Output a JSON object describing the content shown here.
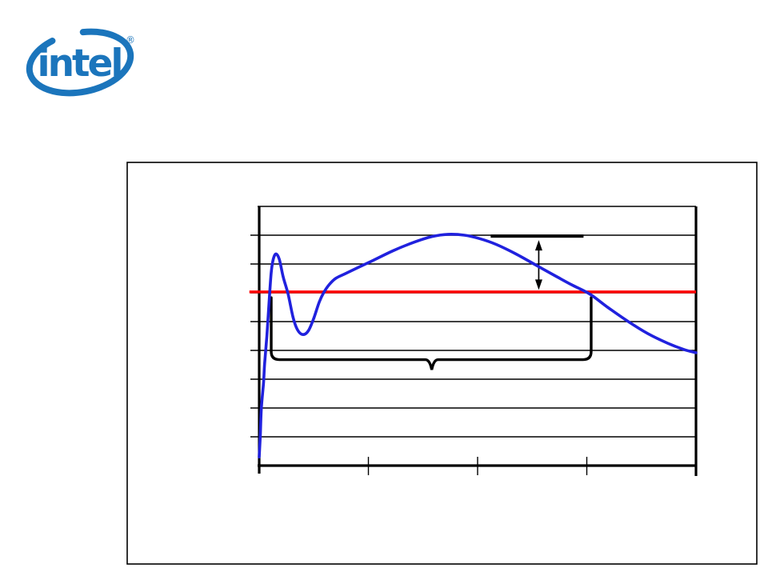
{
  "page": {
    "background": "#ffffff"
  },
  "logo": {
    "text": "intel",
    "registered_mark": "®",
    "color": "#1B75BC"
  },
  "figure": {
    "border_color": "#000000",
    "background": "#ffffff"
  },
  "chart_data": {
    "type": "line",
    "title": "",
    "xlabel": "",
    "ylabel": "",
    "xlim": [
      0,
      4
    ],
    "ylim": [
      0,
      9
    ],
    "x_ticks": [
      0,
      1,
      2,
      3,
      4
    ],
    "y_gridlines": [
      1,
      2,
      3,
      4,
      5,
      6,
      7,
      8,
      9
    ],
    "axis_labels_visible": false,
    "grid": "horizontal gridlines only; x tick marks unlabeled; left/bottom/right frame thick, top thin",
    "axis_color": "#000000",
    "series": [
      {
        "name": "signal-waveform",
        "color": "#2021DE",
        "stroke_width": 3.6,
        "points": [
          [
            0,
            0.3
          ],
          [
            0.01,
            1.05
          ],
          [
            0.02,
            2.0
          ],
          [
            0.04,
            2.9
          ],
          [
            0.05,
            3.55
          ],
          [
            0.07,
            4.5
          ],
          [
            0.09,
            5.65
          ],
          [
            0.11,
            6.7
          ],
          [
            0.13,
            7.18
          ],
          [
            0.155,
            7.35
          ],
          [
            0.185,
            7.15
          ],
          [
            0.22,
            6.55
          ],
          [
            0.265,
            5.95
          ],
          [
            0.31,
            5.15
          ],
          [
            0.35,
            4.72
          ],
          [
            0.4,
            4.55
          ],
          [
            0.45,
            4.68
          ],
          [
            0.5,
            5.12
          ],
          [
            0.55,
            5.68
          ],
          [
            0.59,
            6.0
          ],
          [
            0.64,
            6.28
          ],
          [
            0.7,
            6.5
          ],
          [
            0.78,
            6.65
          ],
          [
            0.89,
            6.85
          ],
          [
            1.03,
            7.1
          ],
          [
            1.22,
            7.45
          ],
          [
            1.4,
            7.73
          ],
          [
            1.58,
            7.95
          ],
          [
            1.73,
            8.03
          ],
          [
            1.88,
            8.0
          ],
          [
            2.02,
            7.88
          ],
          [
            2.17,
            7.68
          ],
          [
            2.35,
            7.35
          ],
          [
            2.54,
            6.95
          ],
          [
            2.72,
            6.57
          ],
          [
            2.86,
            6.28
          ],
          [
            3.03,
            5.95
          ],
          [
            3.19,
            5.5
          ],
          [
            3.38,
            5.0
          ],
          [
            3.56,
            4.58
          ],
          [
            3.74,
            4.25
          ],
          [
            3.89,
            4.03
          ],
          [
            4.0,
            3.92
          ]
        ]
      },
      {
        "name": "reference-level-line",
        "type": "horizontal-line",
        "color": "#FF0000",
        "stroke_width": 3.5,
        "y": 6.03,
        "x_start": -0.09,
        "x_end": 4.0
      }
    ],
    "annotations": [
      {
        "name": "peak-level-segment",
        "type": "horizontal-segment",
        "color": "#000000",
        "stroke_width": 4,
        "y": 7.97,
        "x_start": 2.12,
        "x_end": 2.97
      },
      {
        "name": "overshoot-magnitude-arrow",
        "type": "double-headed-vertical-arrow",
        "color": "#000000",
        "x": 2.56,
        "y_bottom": 6.1,
        "y_top": 7.83
      },
      {
        "name": "duration-brace",
        "type": "horizontal-brace-pointing-down",
        "color": "#000000",
        "stroke_width": 3.4,
        "x_start": 0.11,
        "x_end": 3.04,
        "riser_top_y": 5.83,
        "line_y": 3.68,
        "pointer_x": 1.58,
        "pointer_tip_y": 3.33
      }
    ]
  }
}
